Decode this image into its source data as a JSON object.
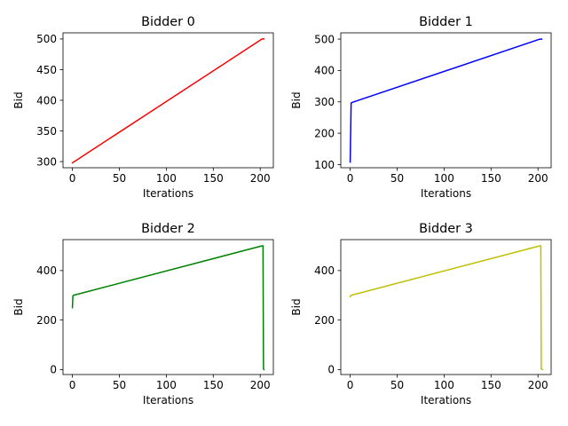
{
  "chart_data": [
    {
      "type": "line",
      "title": "Bidder 0",
      "xlabel": "Iterations",
      "ylabel": "Bid",
      "color": "#ff0000",
      "xlim": [
        -10,
        214
      ],
      "ylim": [
        290,
        510
      ],
      "xticks": [
        0,
        50,
        100,
        150,
        200
      ],
      "yticks": [
        300,
        350,
        400,
        450,
        500
      ],
      "series": [
        {
          "x": [
            0,
            202,
            204
          ],
          "y": [
            298,
            500,
            500
          ]
        }
      ]
    },
    {
      "type": "line",
      "title": "Bidder 1",
      "xlabel": "Iterations",
      "ylabel": "Bid",
      "color": "#0000ff",
      "xlim": [
        -10,
        214
      ],
      "ylim": [
        90,
        520
      ],
      "xticks": [
        0,
        50,
        100,
        150,
        200
      ],
      "yticks": [
        100,
        200,
        300,
        400,
        500
      ],
      "series": [
        {
          "x": [
            0,
            1,
            2,
            202,
            204
          ],
          "y": [
            108,
            296,
            298,
            500,
            500
          ]
        }
      ]
    },
    {
      "type": "line",
      "title": "Bidder 2",
      "xlabel": "Iterations",
      "ylabel": "Bid",
      "color": "#008000",
      "xlim": [
        -10,
        214
      ],
      "ylim": [
        -20,
        525
      ],
      "xticks": [
        0,
        50,
        100,
        150,
        200
      ],
      "yticks": [
        0,
        200,
        400
      ],
      "series": [
        {
          "x": [
            0,
            0.5,
            1,
            202,
            203,
            203.5,
            204
          ],
          "y": [
            250,
            296,
            300,
            500,
            500,
            3,
            0
          ]
        }
      ]
    },
    {
      "type": "line",
      "title": "Bidder 3",
      "xlabel": "Iterations",
      "ylabel": "Bid",
      "color": "#bfbf00",
      "xlim": [
        -10,
        214
      ],
      "ylim": [
        -20,
        525
      ],
      "xticks": [
        0,
        50,
        100,
        150,
        200
      ],
      "yticks": [
        0,
        200,
        400
      ],
      "series": [
        {
          "x": [
            0,
            1,
            202,
            203,
            203.5,
            205
          ],
          "y": [
            295,
            300,
            500,
            500,
            3,
            0
          ]
        }
      ]
    }
  ]
}
